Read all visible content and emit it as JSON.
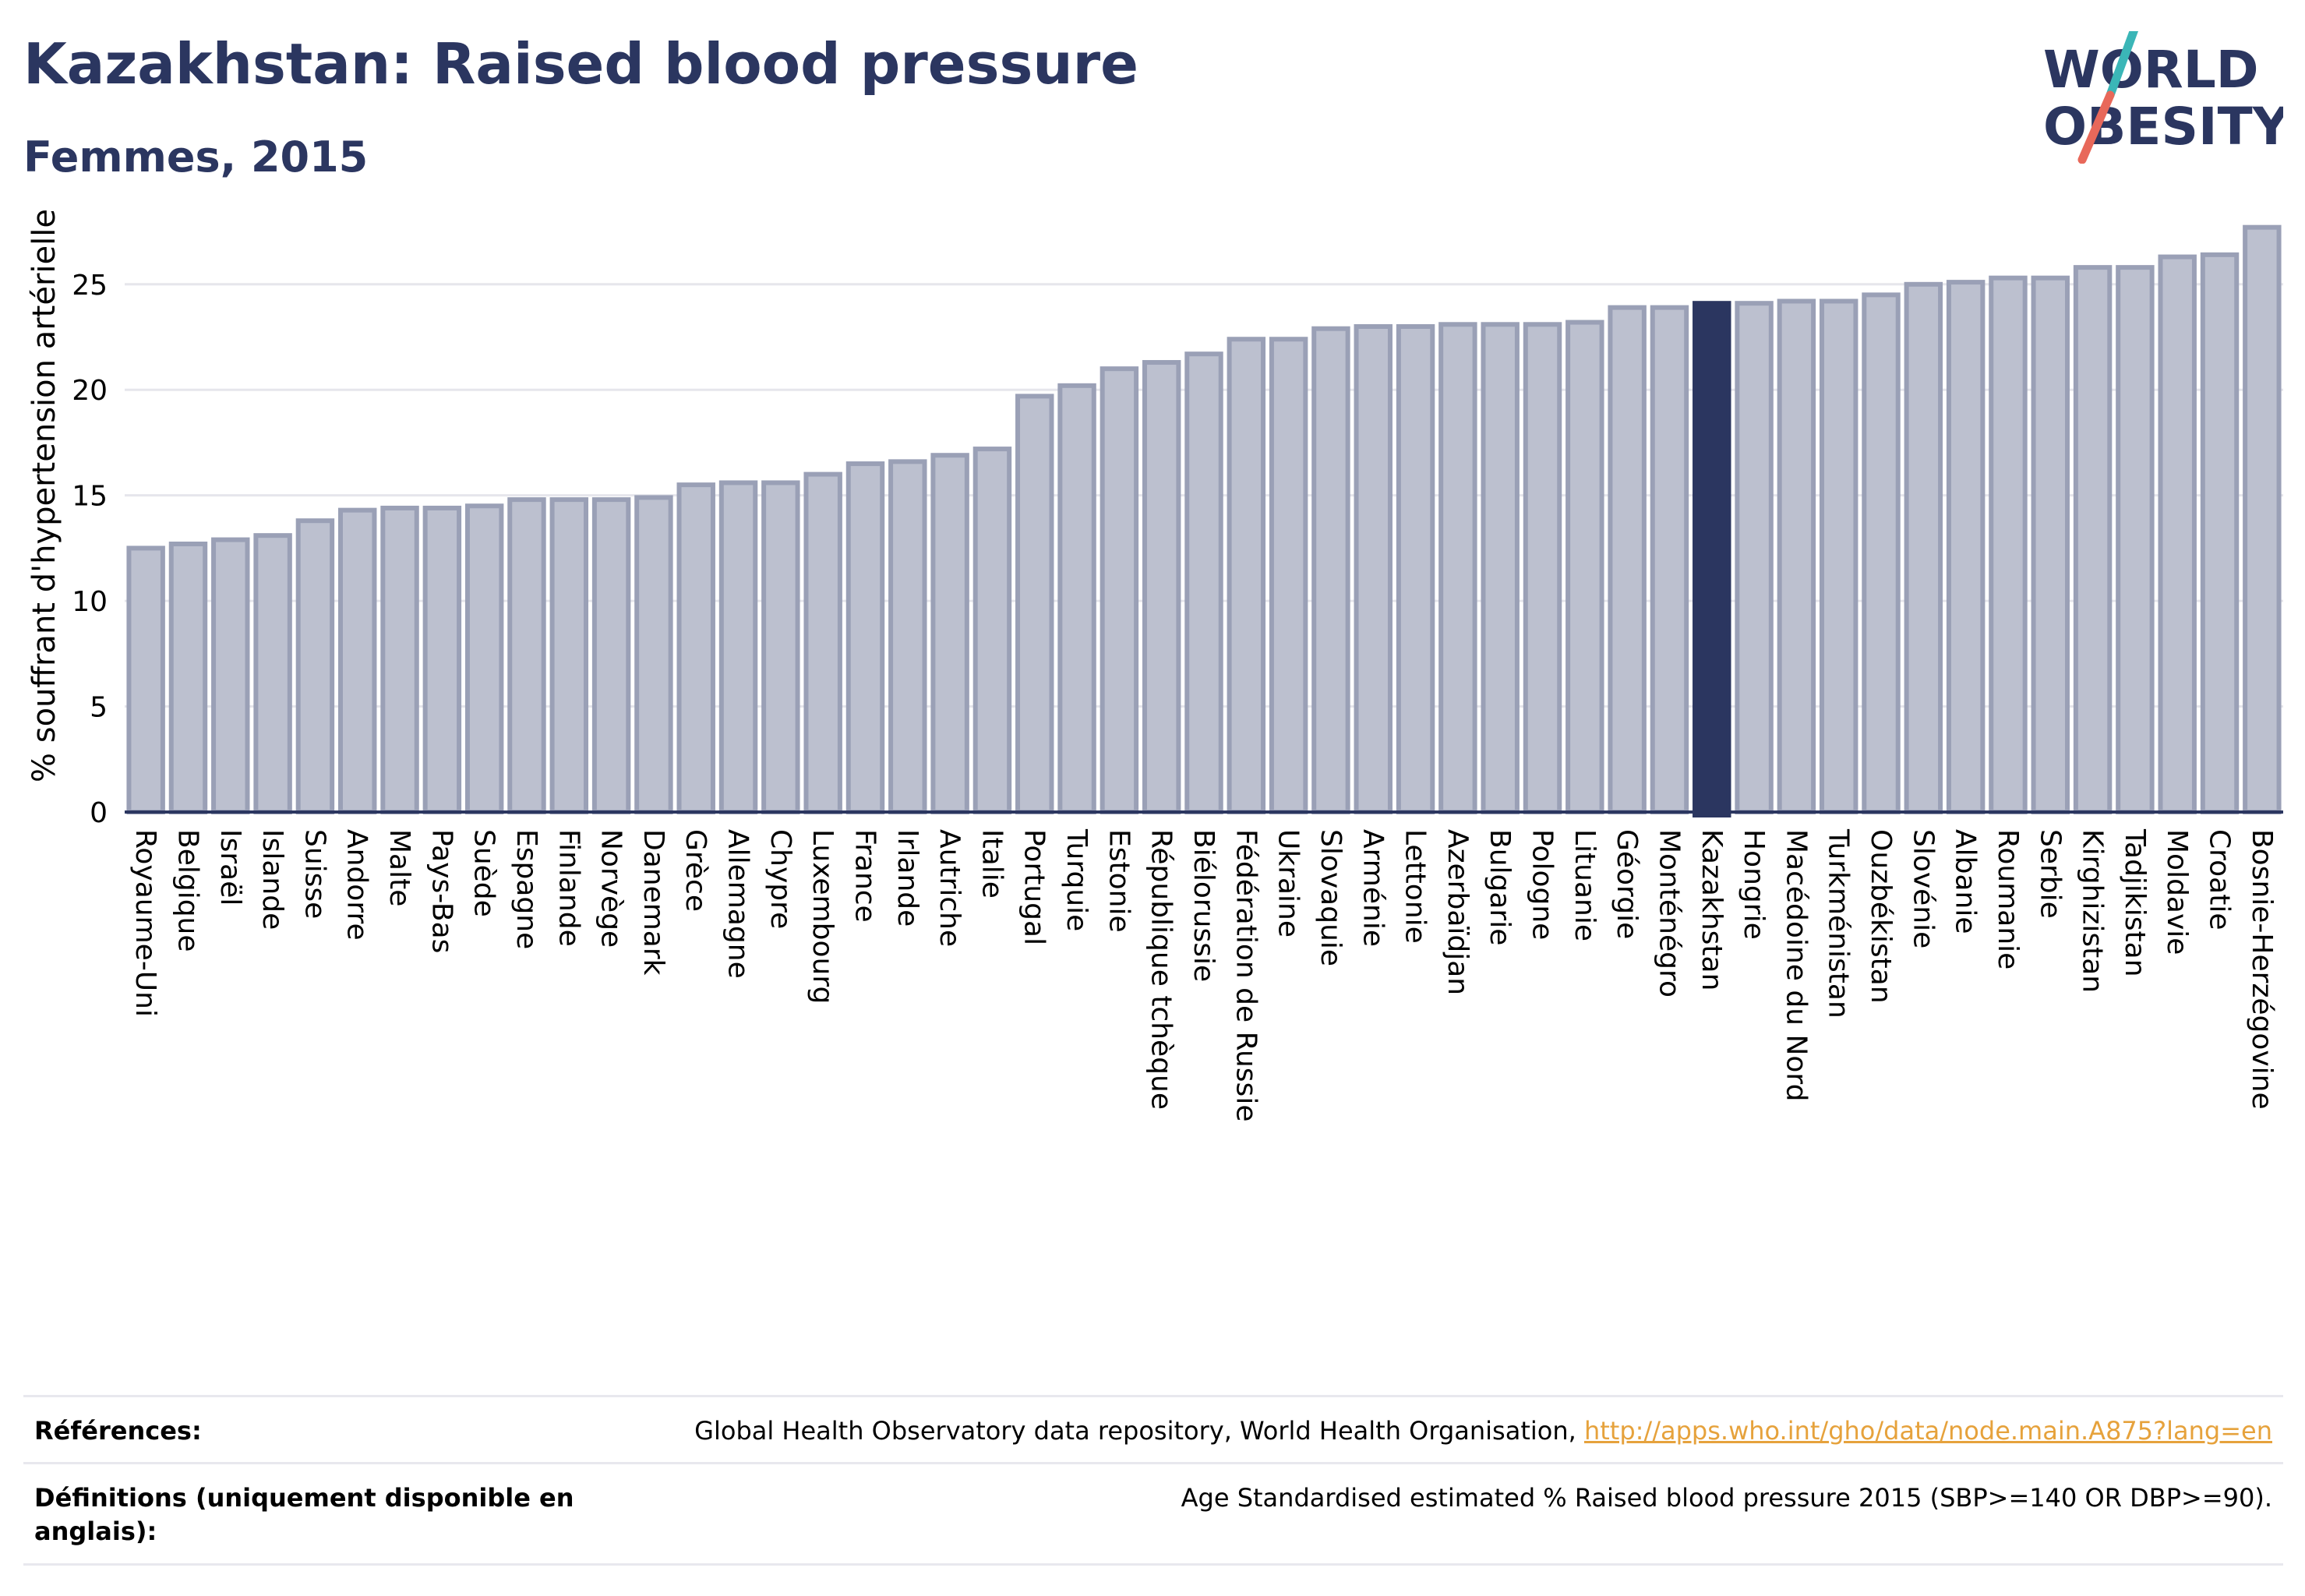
{
  "header": {
    "title": "Kazakhstan: Raised blood pressure",
    "subtitle": "Femmes, 2015"
  },
  "logo": {
    "line1": "WORLD",
    "line2": "OBESITY",
    "icon": "world-obesity-logo"
  },
  "colors": {
    "title": "#2b3660",
    "bar_fill": "#bcc0cf",
    "bar_stroke": "#9aa0b6",
    "highlight": "#2b3660",
    "grid": "#e6e6ec",
    "link": "#e6a23c",
    "logo_slash_teal": "#3bb6b7",
    "logo_slash_red": "#e8685a"
  },
  "chart_data": {
    "type": "bar",
    "title": "",
    "xlabel": "",
    "ylabel": "% souffrant d'hypertension artérielle",
    "ylim": [
      0,
      28.5
    ],
    "yticks": [
      0,
      5,
      10,
      15,
      20,
      25
    ],
    "grid": true,
    "highlight": "Kazakhstan",
    "categories": [
      "Royaume-Uni",
      "Belgique",
      "Israël",
      "Islande",
      "Suisse",
      "Andorre",
      "Malte",
      "Pays-Bas",
      "Suède",
      "Espagne",
      "Finlande",
      "Norvège",
      "Danemark",
      "Grèce",
      "Allemagne",
      "Chypre",
      "Luxembourg",
      "France",
      "Irlande",
      "Autriche",
      "Italie",
      "Portugal",
      "Turquie",
      "Estonie",
      "République tchèque",
      "Biélorussie",
      "Fédération de Russie",
      "Ukraine",
      "Slovaquie",
      "Arménie",
      "Lettonie",
      "Azerbaïdjan",
      "Bulgarie",
      "Pologne",
      "Lituanie",
      "Géorgie",
      "Monténégro",
      "Kazakhstan",
      "Hongrie",
      "Macédoine du Nord",
      "Turkménistan",
      "Ouzbékistan",
      "Slovénie",
      "Albanie",
      "Roumanie",
      "Serbie",
      "Kirghizistan",
      "Tadjikistan",
      "Moldavie",
      "Croatie",
      "Bosnie-Herzégovine"
    ],
    "values": [
      12.5,
      12.7,
      12.9,
      13.1,
      13.8,
      14.3,
      14.4,
      14.4,
      14.5,
      14.8,
      14.8,
      14.8,
      14.9,
      15.5,
      15.6,
      15.6,
      16.0,
      16.5,
      16.6,
      16.9,
      17.2,
      19.7,
      20.2,
      21.0,
      21.3,
      21.7,
      22.4,
      22.4,
      22.9,
      23.0,
      23.0,
      23.1,
      23.1,
      23.1,
      23.2,
      23.9,
      23.9,
      24.1,
      24.1,
      24.2,
      24.2,
      24.5,
      25.0,
      25.1,
      25.3,
      25.3,
      25.8,
      25.8,
      26.3,
      26.4,
      27.7
    ]
  },
  "references": {
    "label": "Références:",
    "text": "Global Health Observatory data repository, World Health Organisation, ",
    "link": "http://apps.who.int/gho/data/node.main.A875?lang=en"
  },
  "definitions": {
    "label": "Définitions (uniquement disponible en anglais):",
    "text": "Age Standardised estimated % Raised blood pressure 2015 (SBP>=140 OR DBP>=90)."
  }
}
